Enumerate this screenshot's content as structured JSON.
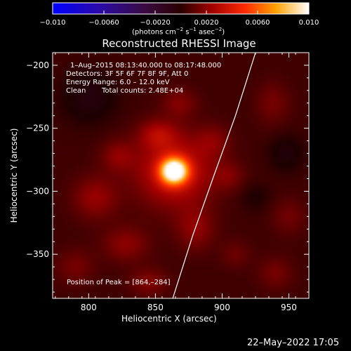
{
  "chart_data": {
    "type": "heatmap",
    "title": "Reconstructed RHESSI Image",
    "xlabel": "Heliocentric X (arcsec)",
    "ylabel": "Heliocentric Y (arcsec)",
    "xlim": [
      773,
      965
    ],
    "ylim": [
      -385,
      -190
    ],
    "xticks": [
      800,
      850,
      900,
      950
    ],
    "yticks": [
      -200,
      -250,
      -300,
      -350
    ],
    "colorbar": {
      "range": [
        -0.01,
        0.01
      ],
      "tick_values": [
        -0.01,
        -0.006,
        -0.002,
        0.002,
        0.006,
        0.01
      ],
      "tick_labels": [
        "−0.010",
        "−0.0060",
        "−0.0020",
        "0.0020",
        "0.0060",
        "0.010"
      ],
      "unit_main": "(photons cm",
      "unit_exp1": "−2",
      "unit_mid": " s",
      "unit_exp2": "−1",
      "unit_after": " asec",
      "unit_exp3": "−2",
      "unit_close": ")"
    },
    "peak": {
      "x": 864,
      "y": -284
    },
    "limb": [
      {
        "x": 925,
        "y": -190
      },
      {
        "x": 910,
        "y": -240
      },
      {
        "x": 893,
        "y": -290
      },
      {
        "x": 878,
        "y": -335
      },
      {
        "x": 863,
        "y": -385
      }
    ],
    "emission_sources": [
      {
        "x": 864,
        "y": -284,
        "amp": 0.01,
        "sx": 7,
        "sy": 7
      },
      {
        "x": 864,
        "y": -284,
        "amp": 0.003,
        "sx": 20,
        "sy": 20
      },
      {
        "x": 852,
        "y": -255,
        "amp": 0.0018,
        "sx": 10,
        "sy": 8
      },
      {
        "x": 805,
        "y": -305,
        "amp": 0.0016,
        "sx": 12,
        "sy": 12
      },
      {
        "x": 828,
        "y": -342,
        "amp": 0.0014,
        "sx": 12,
        "sy": 10
      },
      {
        "x": 880,
        "y": -330,
        "amp": 0.0014,
        "sx": 10,
        "sy": 12
      },
      {
        "x": 822,
        "y": -272,
        "amp": 0.0013,
        "sx": 9,
        "sy": 9
      },
      {
        "x": 893,
        "y": -260,
        "amp": 0.0011,
        "sx": 9,
        "sy": 9
      },
      {
        "x": 868,
        "y": -230,
        "amp": 0.0012,
        "sx": 9,
        "sy": 8
      },
      {
        "x": 905,
        "y": -288,
        "amp": 0.001,
        "sx": 8,
        "sy": 8
      },
      {
        "x": 790,
        "y": -360,
        "amp": 0.001,
        "sx": 10,
        "sy": 10
      },
      {
        "x": 845,
        "y": -372,
        "amp": 0.0012,
        "sx": 10,
        "sy": 8
      },
      {
        "x": 938,
        "y": -230,
        "amp": 0.001,
        "sx": 9,
        "sy": 12
      },
      {
        "x": 950,
        "y": -320,
        "amp": 0.0009,
        "sx": 9,
        "sy": 10
      },
      {
        "x": 940,
        "y": -365,
        "amp": 0.001,
        "sx": 9,
        "sy": 9
      },
      {
        "x": 910,
        "y": -350,
        "amp": 0.0008,
        "sx": 8,
        "sy": 8
      },
      {
        "x": 800,
        "y": -225,
        "amp": -0.0012,
        "sx": 14,
        "sy": 14
      },
      {
        "x": 948,
        "y": -270,
        "amp": -0.001,
        "sx": 9,
        "sy": 10
      },
      {
        "x": 925,
        "y": -305,
        "amp": -0.0006,
        "sx": 8,
        "sy": 8
      }
    ]
  },
  "annotations": {
    "time_range": "1–Aug–2015 08:13:40.000 to 08:17:48.000",
    "detectors": "Detectors: 3F 5F 6F 7F 8F 9F, Att 0",
    "energy_range": "Energy Range: 6.0 – 12.0 keV",
    "method": "Clean",
    "total_counts": "Total counts: 2.48E+04",
    "peak_position": "Position of Peak = [864,–284]"
  },
  "footer": {
    "timestamp": "22–May–2022 17:05"
  }
}
